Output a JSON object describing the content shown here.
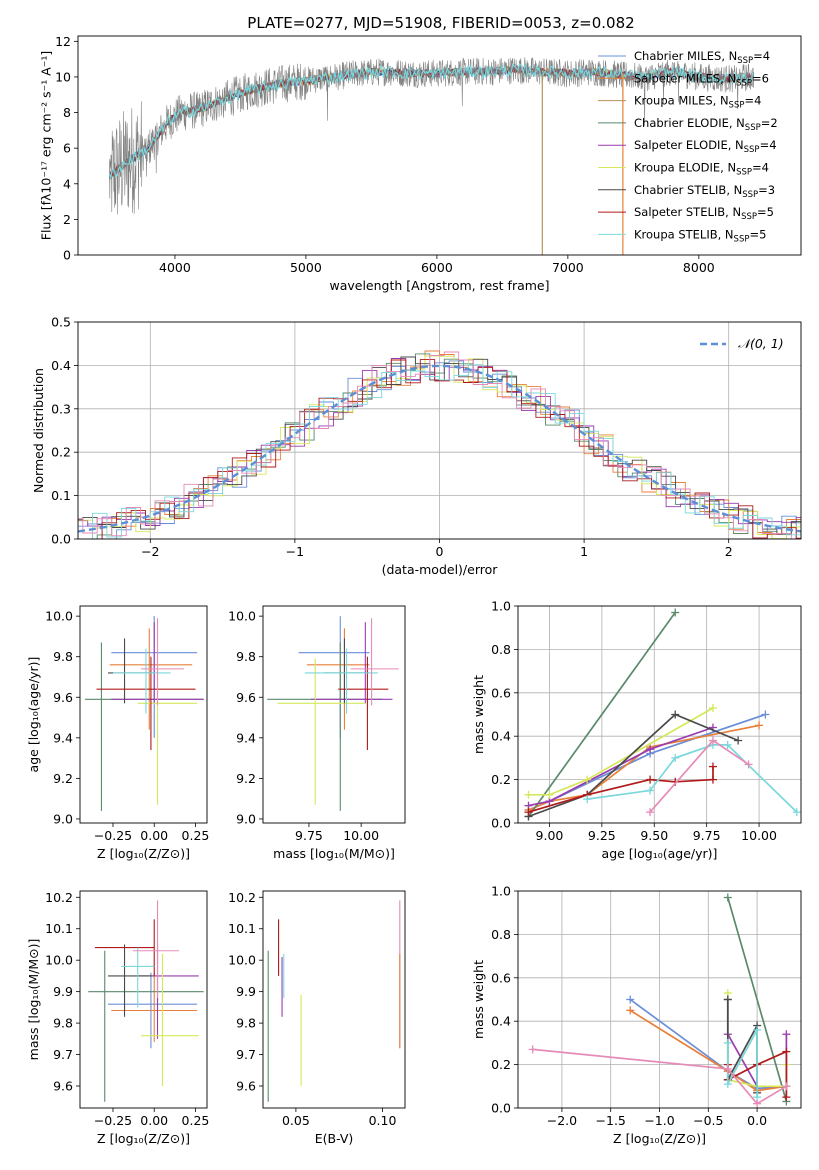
{
  "figure_title": "PLATE=0277, MJD=51908, FIBERID=0053, z=0.082",
  "colors": {
    "Chabrier MILES": "#6a8fd8",
    "Salpeter MILES": "#e8803a",
    "Kroupa MILES": "#b8925a",
    "Chabrier ELODIE": "#5a8a6a",
    "Salpeter ELODIE": "#9a3cb0",
    "Kroupa ELODIE": "#d4e85a",
    "Chabrier STELIB": "#4a4a4a",
    "Salpeter STELIB": "#b01a1a",
    "Kroupa STELIB": "#7ad8dc",
    "pink": "#e68ab8",
    "observed": "#808080",
    "gauss": "#5b8fd6"
  },
  "chart_data": [
    {
      "id": "spectrum",
      "type": "line",
      "title": "PLATE=0277, MJD=51908, FIBERID=0053, z=0.082",
      "xlabel": "wavelength [Angstrom, rest frame]",
      "ylabel": "Flux [fλ10⁻¹⁷ erg cm⁻² s⁻¹ A⁻¹]",
      "xlim": [
        3260,
        8780
      ],
      "ylim": [
        0,
        12.3
      ],
      "xticks": [
        "4000",
        "5000",
        "6000",
        "7000",
        "8000"
      ],
      "yticks": [
        "0",
        "2",
        "4",
        "6",
        "8",
        "10",
        "12"
      ],
      "grid": false,
      "legend_position": "top-right",
      "legend": [
        {
          "label": "Chabrier MILES, N",
          "sub": "SSP",
          "tail": "=4",
          "color": "Chabrier MILES"
        },
        {
          "label": "Salpeter MILES, N",
          "sub": "SSP",
          "tail": "=6",
          "color": "Salpeter MILES"
        },
        {
          "label": "Kroupa MILES, N",
          "sub": "SSP",
          "tail": "=4",
          "color": "Kroupa MILES"
        },
        {
          "label": "Chabrier ELODIE, N",
          "sub": "SSP",
          "tail": "=2",
          "color": "Chabrier ELODIE"
        },
        {
          "label": "Salpeter ELODIE, N",
          "sub": "SSP",
          "tail": "=4",
          "color": "Salpeter ELODIE"
        },
        {
          "label": "Kroupa ELODIE, N",
          "sub": "SSP",
          "tail": "=4",
          "color": "Kroupa ELODIE"
        },
        {
          "label": "Chabrier STELIB, N",
          "sub": "SSP",
          "tail": "=3",
          "color": "Chabrier STELIB"
        },
        {
          "label": "Salpeter STELIB, N",
          "sub": "SSP",
          "tail": "=5",
          "color": "Salpeter STELIB"
        },
        {
          "label": "Kroupa STELIB, N",
          "sub": "SSP",
          "tail": "=5",
          "color": "Kroupa STELIB"
        }
      ],
      "continuum": {
        "x": [
          3500,
          3650,
          3800,
          3950,
          4050,
          4200,
          4400,
          4600,
          4800,
          5000,
          5200,
          5400,
          5600,
          5800,
          6000,
          6200,
          6400,
          6600,
          6800,
          7000,
          7200,
          7400,
          7600,
          7800,
          8000,
          8200,
          8420
        ],
        "y": [
          4.4,
          5.3,
          6.0,
          7.5,
          8.0,
          8.2,
          8.8,
          9.3,
          9.6,
          9.8,
          10.0,
          10.2,
          10.3,
          10.2,
          10.2,
          10.3,
          10.3,
          10.4,
          10.3,
          10.2,
          10.3,
          10.1,
          10.0,
          10.3,
          10.0,
          9.9,
          10.0
        ]
      },
      "cutoffs": [
        {
          "x": 6805,
          "color": "Kroupa MILES"
        },
        {
          "x": 7420,
          "color": "Salpeter MILES"
        }
      ]
    },
    {
      "id": "residuals",
      "type": "histogram",
      "xlabel": "(data-model)/error",
      "ylabel": "Normed distribution",
      "xlim": [
        -2.5,
        2.5
      ],
      "ylim": [
        0,
        0.5
      ],
      "xticks": [
        "−2",
        "−1",
        "0",
        "1",
        "2"
      ],
      "yticks": [
        "0.0",
        "0.1",
        "0.2",
        "0.3",
        "0.4",
        "0.5"
      ],
      "grid": true,
      "legend_position": "top-right",
      "legend_label": "𝒩(0, 1)",
      "bin_width": 0.1,
      "series_colors": [
        "Chabrier MILES",
        "Salpeter MILES",
        "Chabrier ELODIE",
        "Salpeter ELODIE",
        "Kroupa ELODIE",
        "Chabrier STELIB",
        "Salpeter STELIB",
        "Kroupa STELIB",
        "pink"
      ]
    },
    {
      "id": "age_vs_Z",
      "type": "errorbar",
      "xlabel": "Z [log₁₀(Z/Z⊙)]",
      "ylabel": "age  [log₁₀(age/yr)]",
      "xlim": [
        -0.45,
        0.32
      ],
      "ylim": [
        8.98,
        10.05
      ],
      "xticks": [
        "−0.25",
        "0.00",
        "0.25"
      ],
      "yticks": [
        "9.0",
        "9.2",
        "9.4",
        "9.6",
        "9.8",
        "10.0"
      ],
      "grid": false,
      "points": [
        {
          "x": 0.0,
          "xerr": [
            0.26,
            0.26
          ],
          "y": 9.82,
          "yerr": [
            0.42,
            0.18
          ],
          "color": "Chabrier MILES"
        },
        {
          "x": -0.03,
          "xerr": [
            0.24,
            0.26
          ],
          "y": 9.76,
          "yerr": [
            0.32,
            0.18
          ],
          "color": "Salpeter MILES"
        },
        {
          "x": -0.32,
          "xerr": [
            0.1,
            0.62
          ],
          "y": 9.59,
          "yerr": [
            0.55,
            0.28
          ],
          "color": "Chabrier ELODIE"
        },
        {
          "x": 0.0,
          "xerr": [
            0.26,
            0.3
          ],
          "y": 9.59,
          "yerr": [
            0.02,
            0.38
          ],
          "color": "Salpeter ELODIE"
        },
        {
          "x": 0.02,
          "xerr": [
            0.12,
            0.24
          ],
          "y": 9.57,
          "yerr": [
            0.5,
            0.22
          ],
          "color": "Kroupa ELODIE"
        },
        {
          "x": -0.18,
          "xerr": [
            0.1,
            0.18
          ],
          "y": 9.72,
          "yerr": [
            0.15,
            0.17
          ],
          "color": "Chabrier STELIB"
        },
        {
          "x": -0.02,
          "xerr": [
            0.33,
            0.27
          ],
          "y": 9.64,
          "yerr": [
            0.3,
            0.16
          ],
          "color": "Salpeter STELIB"
        },
        {
          "x": -0.05,
          "xerr": [
            0.2,
            0.15
          ],
          "y": 9.72,
          "yerr": [
            0.2,
            0.12
          ],
          "color": "Kroupa STELIB"
        },
        {
          "x": 0.02,
          "xerr": [
            0.1,
            0.16
          ],
          "y": 9.74,
          "yerr": [
            0.18,
            0.25
          ],
          "color": "pink"
        }
      ]
    },
    {
      "id": "age_vs_mass",
      "type": "errorbar",
      "xlabel": "mass [log₁₀(M/M⊙)]",
      "ylabel": "",
      "xlim": [
        9.53,
        10.21
      ],
      "ylim": [
        8.98,
        10.05
      ],
      "xticks": [
        "9.75",
        "10.00"
      ],
      "yticks": [
        "9.0",
        "9.2",
        "9.4",
        "9.6",
        "9.8",
        "10.0"
      ],
      "grid": false,
      "points": [
        {
          "x": 9.9,
          "xerr": [
            0.2,
            0.14
          ],
          "y": 9.82,
          "yerr": [
            0.42,
            0.18
          ],
          "color": "Chabrier MILES"
        },
        {
          "x": 9.92,
          "xerr": [
            0.18,
            0.12
          ],
          "y": 9.76,
          "yerr": [
            0.32,
            0.18
          ],
          "color": "Salpeter MILES"
        },
        {
          "x": 9.9,
          "xerr": [
            0.35,
            0.2
          ],
          "y": 9.59,
          "yerr": [
            0.55,
            0.28
          ],
          "color": "Chabrier ELODIE"
        },
        {
          "x": 10.02,
          "xerr": [
            0.26,
            0.13
          ],
          "y": 9.59,
          "yerr": [
            0.02,
            0.38
          ],
          "color": "Salpeter ELODIE"
        },
        {
          "x": 9.78,
          "xerr": [
            0.18,
            0.24
          ],
          "y": 9.57,
          "yerr": [
            0.5,
            0.22
          ],
          "color": "Kroupa ELODIE"
        },
        {
          "x": 9.92,
          "xerr": [
            0.1,
            0.12
          ],
          "y": 9.72,
          "yerr": [
            0.15,
            0.17
          ],
          "color": "Chabrier STELIB"
        },
        {
          "x": 10.03,
          "xerr": [
            0.14,
            0.1
          ],
          "y": 9.64,
          "yerr": [
            0.3,
            0.16
          ],
          "color": "Salpeter STELIB"
        },
        {
          "x": 9.93,
          "xerr": [
            0.2,
            0.15
          ],
          "y": 9.72,
          "yerr": [
            0.2,
            0.12
          ],
          "color": "Kroupa STELIB"
        },
        {
          "x": 10.05,
          "xerr": [
            0.1,
            0.13
          ],
          "y": 9.74,
          "yerr": [
            0.18,
            0.25
          ],
          "color": "pink"
        }
      ]
    },
    {
      "id": "mass_weight_vs_age",
      "type": "line",
      "xlabel": "age  [log₁₀(age/yr)]",
      "ylabel": "mass weight",
      "xlim": [
        8.85,
        10.2
      ],
      "ylim": [
        0,
        1.0
      ],
      "xticks": [
        "9.00",
        "9.25",
        "9.50",
        "9.75",
        "10.00"
      ],
      "yticks": [
        "0.0",
        "0.2",
        "0.4",
        "0.6",
        "0.8",
        "1.0"
      ],
      "grid": true,
      "series": [
        {
          "color": "Chabrier MILES",
          "x": [
            8.9,
            9.0,
            9.48,
            10.03
          ],
          "y": [
            0.06,
            0.1,
            0.32,
            0.5
          ]
        },
        {
          "color": "Salpeter MILES",
          "x": [
            8.9,
            9.0,
            9.18,
            9.48,
            10.0
          ],
          "y": [
            0.06,
            0.1,
            0.13,
            0.35,
            0.45
          ]
        },
        {
          "color": "Chabrier ELODIE",
          "x": [
            8.9,
            9.6
          ],
          "y": [
            0.03,
            0.97
          ]
        },
        {
          "color": "Salpeter ELODIE",
          "x": [
            8.9,
            9.0,
            9.48,
            9.78
          ],
          "y": [
            0.08,
            0.1,
            0.34,
            0.44
          ]
        },
        {
          "color": "Kroupa ELODIE",
          "x": [
            8.9,
            9.0,
            9.18,
            9.78
          ],
          "y": [
            0.13,
            0.13,
            0.2,
            0.53
          ]
        },
        {
          "color": "Chabrier STELIB",
          "x": [
            8.9,
            9.18,
            9.6,
            9.9
          ],
          "y": [
            0.03,
            0.13,
            0.5,
            0.38
          ]
        },
        {
          "color": "Salpeter STELIB",
          "x": [
            8.9,
            9.18,
            9.48,
            9.6,
            9.78,
            9.78
          ],
          "y": [
            0.05,
            0.13,
            0.2,
            0.19,
            0.2,
            0.26
          ]
        },
        {
          "color": "Kroupa STELIB",
          "x": [
            9.18,
            9.48,
            9.6,
            9.78,
            9.85,
            10.18
          ],
          "y": [
            0.11,
            0.15,
            0.3,
            0.36,
            0.36,
            0.05
          ]
        },
        {
          "color": "pink",
          "x": [
            9.48,
            9.78,
            9.95
          ],
          "y": [
            0.05,
            0.38,
            0.27
          ]
        }
      ]
    },
    {
      "id": "mass_vs_Z",
      "type": "errorbar",
      "xlabel": "Z [log₁₀(Z/Z⊙)]",
      "ylabel": "mass [log₁₀(M/M⊙)]",
      "xlim": [
        -0.45,
        0.32
      ],
      "ylim": [
        9.53,
        10.22
      ],
      "xticks": [
        "−0.25",
        "0.00",
        "0.25"
      ],
      "yticks": [
        "9.6",
        "9.7",
        "9.8",
        "9.9",
        "10.0",
        "10.1",
        "10.2"
      ],
      "grid": false,
      "points": [
        {
          "x": -0.02,
          "xerr": [
            0.26,
            0.28
          ],
          "y": 9.86,
          "yerr": [
            0.14,
            0.1
          ],
          "color": "Chabrier MILES"
        },
        {
          "x": 0.0,
          "xerr": [
            0.26,
            0.26
          ],
          "y": 9.84,
          "yerr": [
            0.1,
            0.12
          ],
          "color": "Salpeter MILES"
        },
        {
          "x": -0.3,
          "xerr": [
            0.1,
            0.6
          ],
          "y": 9.9,
          "yerr": [
            0.35,
            0.13
          ],
          "color": "Chabrier ELODIE"
        },
        {
          "x": 0.02,
          "xerr": [
            0.12,
            0.25
          ],
          "y": 9.95,
          "yerr": [
            0.2,
            0.1
          ],
          "color": "Salpeter ELODIE"
        },
        {
          "x": 0.05,
          "xerr": [
            0.13,
            0.22
          ],
          "y": 9.76,
          "yerr": [
            0.16,
            0.26
          ],
          "color": "Kroupa ELODIE"
        },
        {
          "x": -0.18,
          "xerr": [
            0.1,
            0.17
          ],
          "y": 9.95,
          "yerr": [
            0.13,
            0.1
          ],
          "color": "Chabrier STELIB"
        },
        {
          "x": 0.0,
          "xerr": [
            0.36,
            0.0
          ],
          "y": 10.04,
          "yerr": [
            0.09,
            0.09
          ],
          "color": "Salpeter STELIB"
        },
        {
          "x": -0.1,
          "xerr": [
            0.1,
            0.1
          ],
          "y": 9.98,
          "yerr": [
            0.13,
            0.06
          ],
          "color": "Kroupa STELIB"
        },
        {
          "x": 0.02,
          "xerr": [
            0.15,
            0.13
          ],
          "y": 10.03,
          "yerr": [
            0.15,
            0.16
          ],
          "color": "pink"
        }
      ]
    },
    {
      "id": "mass_vs_ebv",
      "type": "errorbar",
      "xlabel": "E(B-V)",
      "ylabel": "",
      "xlim": [
        0.031,
        0.113
      ],
      "ylim": [
        9.53,
        10.22
      ],
      "xticks": [
        "0.05",
        "0.10"
      ],
      "yticks": [
        "9.6",
        "9.7",
        "9.8",
        "9.9",
        "10.0",
        "10.1",
        "10.2"
      ],
      "grid": false,
      "points": [
        {
          "x": 0.034,
          "y": 9.9,
          "yerr": [
            0.35,
            0.13
          ],
          "color": "Chabrier ELODIE"
        },
        {
          "x": 0.042,
          "y": 9.94,
          "yerr": [
            0.12,
            0.07
          ],
          "color": "Salpeter ELODIE"
        },
        {
          "x": 0.053,
          "y": 9.76,
          "yerr": [
            0.16,
            0.13
          ],
          "color": "Kroupa ELODIE"
        },
        {
          "x": 0.04,
          "y": 10.04,
          "yerr": [
            0.09,
            0.09
          ],
          "color": "Salpeter STELIB"
        },
        {
          "x": 0.043,
          "y": 9.98,
          "yerr": [
            0.1,
            0.04
          ],
          "color": "Kroupa STELIB"
        },
        {
          "x": 0.11,
          "y": 9.88,
          "yerr": [
            0.16,
            0.31
          ],
          "color": "pink"
        },
        {
          "x": 0.11,
          "y": 9.86,
          "yerr": [
            0.14,
            0.16
          ],
          "color": "Salpeter MILES"
        }
      ]
    },
    {
      "id": "mass_weight_vs_Z",
      "type": "line",
      "xlabel": "Z [log₁₀(Z/Z⊙)]",
      "ylabel": "mass weight",
      "xlim": [
        -2.45,
        0.45
      ],
      "ylim": [
        0,
        1.0
      ],
      "xticks": [
        "−2.0",
        "−1.5",
        "−1.0",
        "−0.5",
        "0.0"
      ],
      "yticks": [
        "0.0",
        "0.2",
        "0.4",
        "0.6",
        "0.8",
        "1.0"
      ],
      "grid": true,
      "series": [
        {
          "color": "Chabrier MILES",
          "x": [
            -1.3,
            -0.3,
            0.0,
            0.3
          ],
          "y": [
            0.5,
            0.17,
            0.09,
            0.1
          ]
        },
        {
          "color": "Salpeter MILES",
          "x": [
            -1.3,
            -0.3,
            0.0,
            0.3
          ],
          "y": [
            0.45,
            0.17,
            0.08,
            0.1
          ]
        },
        {
          "color": "Chabrier ELODIE",
          "x": [
            -0.3,
            0.3
          ],
          "y": [
            0.97,
            0.03
          ]
        },
        {
          "color": "Salpeter ELODIE",
          "x": [
            -0.3,
            -0.3,
            0.0,
            0.3,
            0.3
          ],
          "y": [
            0.5,
            0.34,
            0.1,
            0.1,
            0.34
          ]
        },
        {
          "color": "Kroupa ELODIE",
          "x": [
            -0.3,
            -0.3,
            0.0,
            0.3,
            0.3
          ],
          "y": [
            0.53,
            0.13,
            0.1,
            0.1,
            0.2
          ]
        },
        {
          "color": "Chabrier STELIB",
          "x": [
            -0.3,
            -0.3,
            0.0,
            0.0
          ],
          "y": [
            0.5,
            0.13,
            0.38,
            0.07
          ]
        },
        {
          "color": "Salpeter STELIB",
          "x": [
            -0.3,
            -0.3,
            0.0,
            0.3,
            0.3
          ],
          "y": [
            0.2,
            0.13,
            0.2,
            0.26,
            0.05
          ]
        },
        {
          "color": "Kroupa STELIB",
          "x": [
            -0.3,
            -0.3,
            0.0,
            0.0
          ],
          "y": [
            0.3,
            0.11,
            0.36,
            0.05
          ]
        },
        {
          "color": "pink",
          "x": [
            -2.3,
            -0.3,
            0.0,
            0.3
          ],
          "y": [
            0.27,
            0.18,
            0.02,
            0.1
          ]
        }
      ]
    }
  ]
}
